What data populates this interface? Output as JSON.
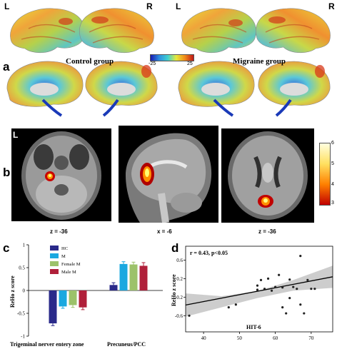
{
  "panel_a": {
    "letter": "a",
    "left_hemi": "L",
    "right_hemi": "R",
    "control_label": "Control group",
    "migraine_label": "Migraine group",
    "colorbar": {
      "min": "-25",
      "max": "25",
      "colors": [
        "#1a1ab0",
        "#2e8fe0",
        "#3fd0d0",
        "#e8e83a",
        "#f08a1a",
        "#c01818"
      ]
    }
  },
  "panel_b": {
    "letter": "b",
    "slices": [
      "z = -36",
      "x = -6",
      "z = -36"
    ],
    "colorbar": {
      "ticks": [
        "6",
        "5",
        "4",
        "3"
      ],
      "colors": [
        "#ffffe0",
        "#ffe060",
        "#ff8000",
        "#c00000"
      ]
    }
  },
  "panel_c": {
    "letter": "c",
    "ylabel": "ReHo z score",
    "colors": {
      "HC": "#2a2a8a",
      "M": "#1aa8e0",
      "Female M": "#9cc26a",
      "Male M": "#b0203a"
    },
    "chart_data": {
      "type": "bar",
      "categories": [
        "Trigeminal nerver entery zone",
        "Precuneus/PCC"
      ],
      "series": [
        {
          "name": "HC",
          "values": [
            -0.72,
            0.12
          ]
        },
        {
          "name": "M",
          "values": [
            -0.35,
            0.58
          ]
        },
        {
          "name": "Female M",
          "values": [
            -0.32,
            0.57
          ]
        },
        {
          "name": "Male M",
          "values": [
            -0.37,
            0.54
          ]
        }
      ],
      "errors": [
        [
          0.05,
          0.05
        ],
        [
          0.04,
          0.05
        ],
        [
          0.05,
          0.05
        ],
        [
          0.05,
          0.07
        ]
      ],
      "ylim": [
        -1,
        1
      ],
      "yticks": [
        "1",
        "0.5",
        "0",
        "-0.5",
        "-1"
      ],
      "legend": "top-left"
    }
  },
  "panel_d": {
    "letter": "d",
    "chart_data": {
      "type": "scatter",
      "annotation": "r = 0.43, p<0.05",
      "xlabel": "HIT-6",
      "ylabel": "ReHo z score",
      "xlim": [
        35,
        76
      ],
      "ylim": [
        -0.95,
        0.9
      ],
      "xticks": [
        "40",
        "50",
        "60",
        "70"
      ],
      "yticks": [
        "0.6",
        "0.2",
        "-0.2",
        "-0.6"
      ],
      "points": [
        [
          36,
          -0.6
        ],
        [
          47,
          -0.42
        ],
        [
          49,
          -0.36
        ],
        [
          55,
          0.05
        ],
        [
          55,
          -0.04
        ],
        [
          56,
          0.17
        ],
        [
          57,
          -0.02
        ],
        [
          58,
          0.2
        ],
        [
          59,
          -0.06
        ],
        [
          60,
          0.02
        ],
        [
          61,
          0.28
        ],
        [
          62,
          -0.42
        ],
        [
          62,
          0.01
        ],
        [
          63,
          -0.55
        ],
        [
          64,
          0.18
        ],
        [
          64,
          -0.22
        ],
        [
          65,
          0.02
        ],
        [
          66,
          -0.02
        ],
        [
          67,
          0.69
        ],
        [
          67,
          -0.36
        ],
        [
          68,
          -0.55
        ],
        [
          69,
          0.17
        ],
        [
          70,
          -0.02
        ],
        [
          71,
          -0.02
        ]
      ],
      "fit": {
        "x": [
          35,
          76
        ],
        "y": [
          -0.37,
          0.24
        ]
      },
      "ci_upper": [
        [
          35,
          -0.12
        ],
        [
          45,
          -0.18
        ],
        [
          55,
          -0.07
        ],
        [
          65,
          0.17
        ],
        [
          76,
          0.48
        ]
      ],
      "ci_lower": [
        [
          35,
          -0.62
        ],
        [
          45,
          -0.42
        ],
        [
          55,
          -0.22
        ],
        [
          65,
          -0.06
        ],
        [
          76,
          0.0
        ]
      ]
    }
  }
}
